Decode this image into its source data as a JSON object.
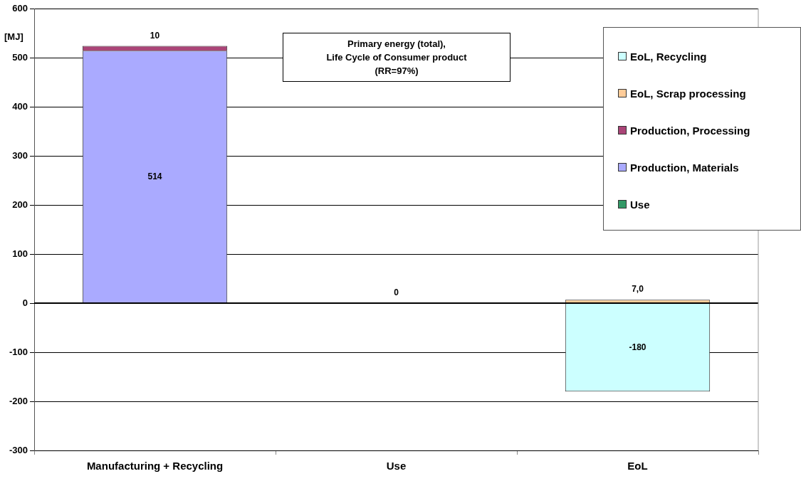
{
  "chart_data": {
    "type": "bar",
    "stacked": true,
    "title": "Primary energy (total),\nLife Cycle of Consumer product\n(RR=97%)",
    "ylabel": "[MJ]",
    "categories": [
      "Manufacturing + Recycling",
      "Use",
      "EoL"
    ],
    "series": [
      {
        "name": "Use",
        "color": "#339966",
        "values": [
          null,
          0,
          null
        ],
        "value_labels": [
          null,
          "0",
          null
        ]
      },
      {
        "name": "Production, Materials",
        "color": "#aaaaff",
        "values": [
          514,
          null,
          null
        ],
        "value_labels": [
          "514",
          null,
          null
        ]
      },
      {
        "name": "Production, Processing",
        "color": "#aa4477",
        "values": [
          10,
          null,
          null
        ],
        "value_labels": [
          "10",
          null,
          null
        ]
      },
      {
        "name": "EoL, Scrap processing",
        "color": "#ffcc99",
        "values": [
          null,
          null,
          7.0
        ],
        "value_labels": [
          null,
          null,
          "7,0"
        ]
      },
      {
        "name": "EoL, Recycling",
        "color": "#ccffff",
        "values": [
          null,
          null,
          -180
        ],
        "value_labels": [
          null,
          null,
          "-180"
        ]
      }
    ],
    "ylim": [
      -300,
      600
    ],
    "yticks": [
      -300,
      -200,
      -100,
      0,
      100,
      200,
      300,
      400,
      500,
      600
    ],
    "grid": "y",
    "legend": "top right"
  }
}
